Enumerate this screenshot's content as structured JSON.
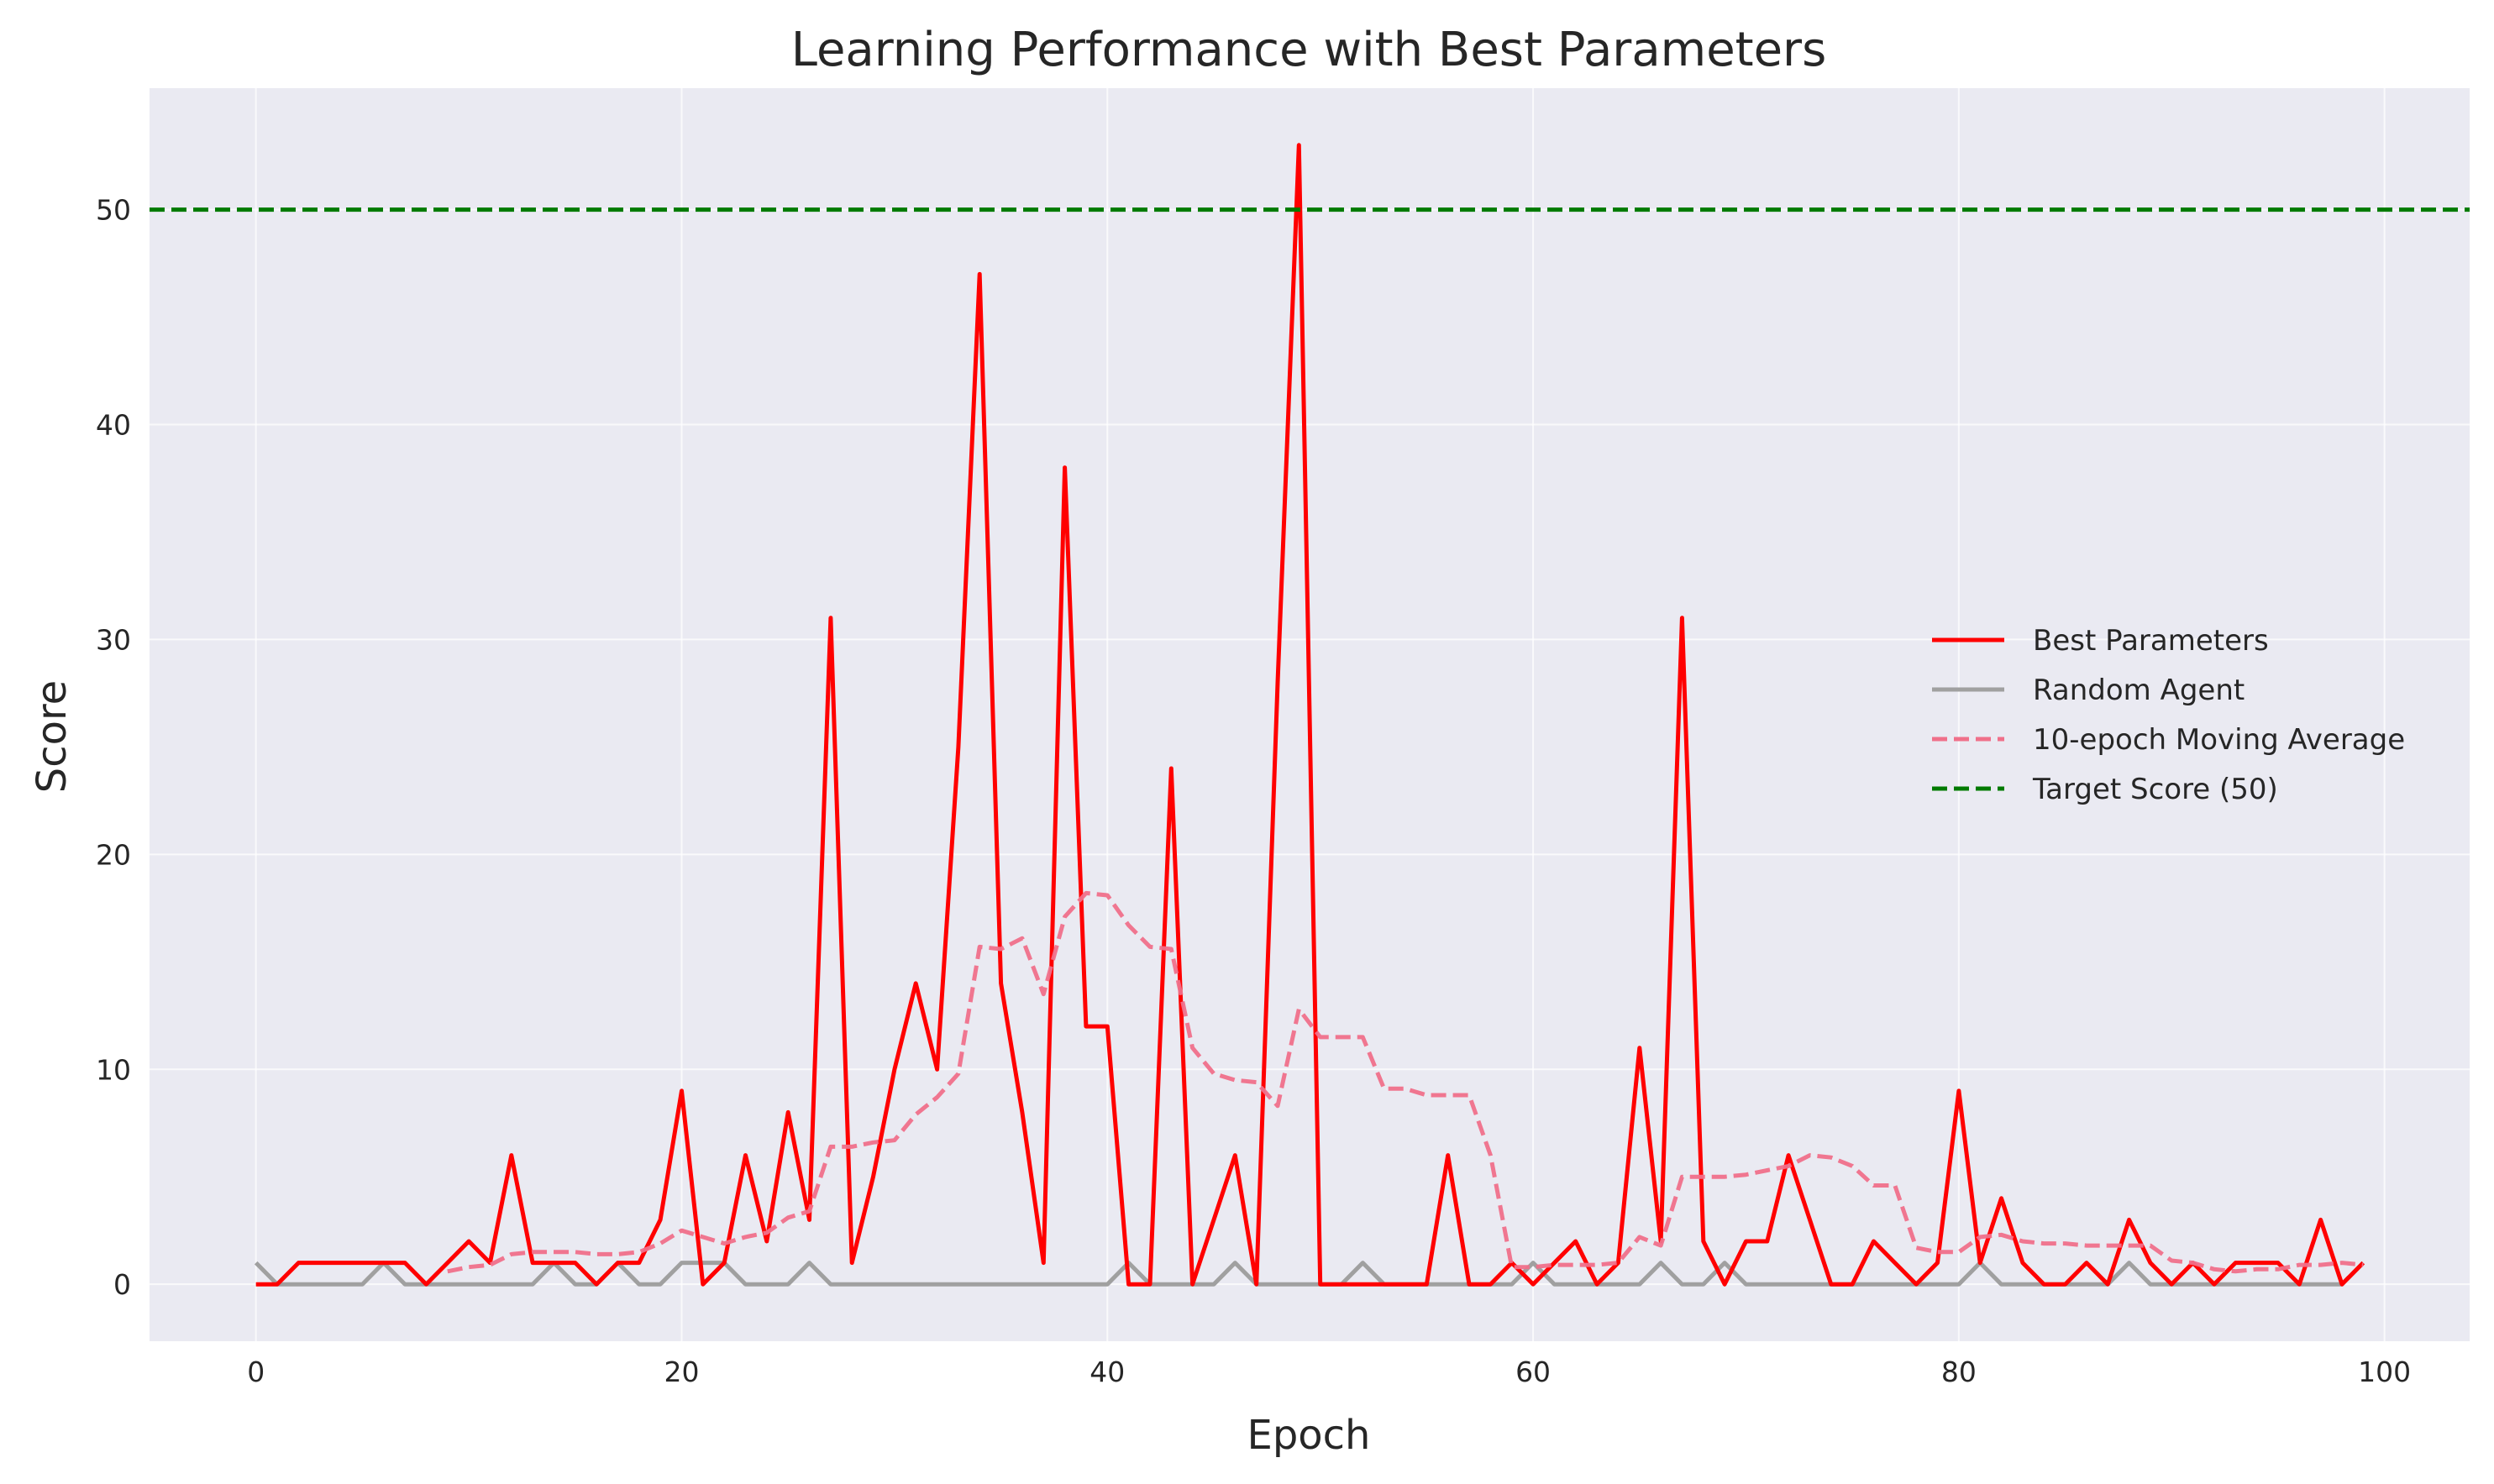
{
  "chart_data": {
    "type": "line",
    "title": "Learning Performance with Best Parameters",
    "xlabel": "Epoch",
    "ylabel": "Score",
    "xlim": [
      -5,
      104
    ],
    "ylim": [
      -2.65,
      55.65
    ],
    "x_ticks": [
      0,
      20,
      40,
      60,
      80,
      100
    ],
    "y_ticks": [
      0,
      10,
      20,
      30,
      40,
      50
    ],
    "grid": true,
    "legend_position": "center-right",
    "background_color": "#eaeaf2",
    "series": [
      {
        "name": "Best Parameters",
        "style": "solid",
        "color": "#ff0000",
        "x_start": 0,
        "values": [
          0,
          0,
          1,
          1,
          1,
          1,
          1,
          1,
          0,
          1,
          2,
          1,
          6,
          1,
          1,
          1,
          0,
          1,
          1,
          3,
          9,
          0,
          1,
          6,
          2,
          8,
          3,
          31,
          1,
          5,
          10,
          14,
          10,
          25,
          47,
          14,
          8,
          1,
          38,
          12,
          12,
          0,
          0,
          24,
          0,
          3,
          6,
          0,
          28,
          53,
          0,
          0,
          0,
          0,
          0,
          0,
          6,
          0,
          0,
          1,
          0,
          1,
          2,
          0,
          1,
          11,
          2,
          31,
          2,
          0,
          2,
          2,
          6,
          3,
          0,
          0,
          2,
          1,
          0,
          1,
          9,
          1,
          4,
          1,
          0,
          0,
          1,
          0,
          3,
          1,
          0,
          1,
          0,
          1,
          1,
          1,
          0,
          3,
          0,
          1
        ]
      },
      {
        "name": "Random Agent",
        "style": "solid",
        "color": "#a0a0a0",
        "x_start": 0,
        "values": [
          1,
          0,
          0,
          0,
          0,
          0,
          1,
          0,
          0,
          0,
          0,
          0,
          0,
          0,
          1,
          0,
          0,
          1,
          0,
          0,
          1,
          1,
          1,
          0,
          0,
          0,
          1,
          0,
          0,
          0,
          0,
          0,
          0,
          0,
          0,
          0,
          0,
          0,
          0,
          0,
          0,
          1,
          0,
          0,
          0,
          0,
          1,
          0,
          0,
          0,
          0,
          0,
          1,
          0,
          0,
          0,
          0,
          0,
          0,
          0,
          1,
          0,
          0,
          0,
          0,
          0,
          1,
          0,
          0,
          1,
          0,
          0,
          0,
          0,
          0,
          0,
          0,
          0,
          0,
          0,
          0,
          1,
          0,
          0,
          0,
          0,
          0,
          0,
          1,
          0,
          0,
          0,
          0,
          0,
          0,
          0,
          0,
          0,
          0,
          1
        ]
      },
      {
        "name": "10-epoch Moving Average",
        "style": "dashed",
        "color": "#f0708a",
        "x_start": 9,
        "values": [
          0.6,
          0.8,
          0.9,
          1.4,
          1.5,
          1.5,
          1.5,
          1.4,
          1.4,
          1.5,
          1.9,
          2.5,
          2.2,
          1.9,
          2.2,
          2.4,
          3.1,
          3.4,
          6.4,
          6.4,
          6.6,
          6.7,
          7.9,
          8.7,
          9.8,
          15.7,
          15.6,
          16.1,
          13.5,
          17.1,
          18.2,
          18.1,
          16.7,
          15.7,
          15.6,
          11.0,
          9.8,
          9.5,
          9.4,
          8.3,
          12.8,
          11.5,
          11.5,
          11.5,
          9.1,
          9.1,
          8.8,
          8.8,
          8.8,
          6.0,
          0.8,
          0.8,
          0.9,
          0.9,
          0.9,
          1.0,
          2.2,
          1.8,
          5.0,
          5.0,
          5.0,
          5.1,
          5.3,
          5.5,
          6.0,
          5.9,
          5.5,
          4.6,
          4.6,
          1.7,
          1.5,
          1.5,
          2.2,
          2.3,
          2.0,
          1.9,
          1.9,
          1.8,
          1.8,
          1.8,
          1.8,
          1.1,
          1.0,
          0.7,
          0.6,
          0.7,
          0.7,
          0.9,
          0.9,
          1.0,
          0.9
        ]
      },
      {
        "name": "Target Score (50)",
        "style": "dashed",
        "color": "#007a00",
        "y_constant": 50
      }
    ]
  }
}
